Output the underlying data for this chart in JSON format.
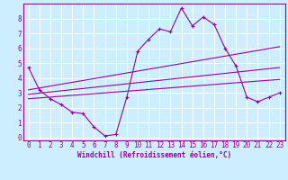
{
  "background_color": "#cceeff",
  "grid_color": "#ffffff",
  "line_color": "#990099",
  "xlabel": "Windchill (Refroidissement éolien,°C)",
  "xlim": [
    -0.5,
    23.5
  ],
  "ylim": [
    -0.2,
    9.0
  ],
  "xticks": [
    0,
    1,
    2,
    3,
    4,
    5,
    6,
    7,
    8,
    9,
    10,
    11,
    12,
    13,
    14,
    15,
    16,
    17,
    18,
    19,
    20,
    21,
    22,
    23
  ],
  "yticks": [
    0,
    1,
    2,
    3,
    4,
    5,
    6,
    7,
    8
  ],
  "main_line_x": [
    0,
    1,
    2,
    3,
    4,
    5,
    6,
    7,
    8,
    9,
    10,
    11,
    12,
    13,
    14,
    15,
    16,
    17,
    18,
    19,
    20,
    21,
    22,
    23
  ],
  "main_line_y": [
    4.7,
    3.2,
    2.6,
    2.2,
    1.7,
    1.6,
    0.7,
    0.1,
    0.2,
    2.7,
    5.8,
    6.6,
    7.3,
    7.1,
    8.7,
    7.5,
    8.1,
    7.6,
    6.0,
    4.8,
    2.7,
    2.4,
    2.7,
    3.0
  ],
  "upper_line_x": [
    0,
    23
  ],
  "upper_line_y": [
    3.2,
    6.1
  ],
  "mid_line_x": [
    0,
    23
  ],
  "mid_line_y": [
    2.9,
    4.7
  ],
  "lower_line_x": [
    0,
    23
  ],
  "lower_line_y": [
    2.6,
    3.9
  ],
  "tick_fontsize": 5.5,
  "xlabel_fontsize": 5.5
}
